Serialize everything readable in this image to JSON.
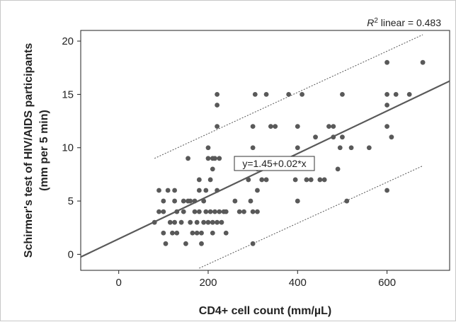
{
  "chart_data": {
    "type": "scatter",
    "xlabel": "CD4+ cell count (mm/µL)",
    "ylabel_line1": "Schirmer's test of HIV/AIDS participants",
    "ylabel_line2": "(mm per 5 min)",
    "xlim": [
      -85,
      740
    ],
    "ylim": [
      -1.5,
      21
    ],
    "xticks": [
      0,
      200,
      400,
      600
    ],
    "yticks": [
      0,
      5,
      10,
      15,
      20
    ],
    "grid": false,
    "r2_label_prefix": "R",
    "r2_label_suffix": " linear = 0.483",
    "equation_label": "y=1.45+0.02*x",
    "colors": {
      "points": "#595959",
      "fit_line": "#595959",
      "ci_lines": "#555555",
      "axes": "#222222"
    },
    "fit_line": {
      "intercept": 1.45,
      "slope": 0.02,
      "x_range": [
        -85,
        740
      ]
    },
    "ci_bands": [
      {
        "name": "upper",
        "points": [
          [
            80,
            9
          ],
          [
            680,
            20.6
          ]
        ]
      },
      {
        "name": "lower",
        "points": [
          [
            180,
            -1.3
          ],
          [
            680,
            8.3
          ]
        ]
      }
    ],
    "points": [
      [
        80,
        3
      ],
      [
        90,
        6
      ],
      [
        90,
        4
      ],
      [
        100,
        5
      ],
      [
        100,
        4
      ],
      [
        100,
        2
      ],
      [
        105,
        1
      ],
      [
        110,
        6
      ],
      [
        115,
        3
      ],
      [
        120,
        2
      ],
      [
        125,
        6
      ],
      [
        125,
        5
      ],
      [
        125,
        3
      ],
      [
        130,
        4
      ],
      [
        130,
        2
      ],
      [
        140,
        3
      ],
      [
        145,
        5
      ],
      [
        145,
        4
      ],
      [
        150,
        1
      ],
      [
        155,
        9
      ],
      [
        155,
        5
      ],
      [
        160,
        5
      ],
      [
        160,
        3
      ],
      [
        165,
        2
      ],
      [
        170,
        5
      ],
      [
        170,
        4
      ],
      [
        175,
        3
      ],
      [
        175,
        2
      ],
      [
        180,
        7
      ],
      [
        180,
        6
      ],
      [
        180,
        4
      ],
      [
        185,
        2
      ],
      [
        185,
        1
      ],
      [
        190,
        5
      ],
      [
        190,
        3
      ],
      [
        195,
        6
      ],
      [
        195,
        4
      ],
      [
        200,
        10
      ],
      [
        200,
        9
      ],
      [
        200,
        3
      ],
      [
        205,
        7
      ],
      [
        205,
        4
      ],
      [
        210,
        9
      ],
      [
        210,
        8
      ],
      [
        210,
        3
      ],
      [
        210,
        2
      ],
      [
        215,
        9
      ],
      [
        215,
        4
      ],
      [
        220,
        15
      ],
      [
        220,
        14
      ],
      [
        220,
        12
      ],
      [
        220,
        6
      ],
      [
        220,
        3
      ],
      [
        225,
        9
      ],
      [
        225,
        4
      ],
      [
        230,
        3
      ],
      [
        235,
        4
      ],
      [
        240,
        4
      ],
      [
        240,
        2
      ],
      [
        260,
        5
      ],
      [
        270,
        4
      ],
      [
        280,
        4
      ],
      [
        290,
        7
      ],
      [
        295,
        5
      ],
      [
        300,
        12
      ],
      [
        300,
        10
      ],
      [
        300,
        4
      ],
      [
        300,
        1
      ],
      [
        305,
        15
      ],
      [
        310,
        8
      ],
      [
        310,
        6
      ],
      [
        310,
        4
      ],
      [
        315,
        9
      ],
      [
        320,
        7
      ],
      [
        330,
        15
      ],
      [
        330,
        7
      ],
      [
        340,
        12
      ],
      [
        350,
        12
      ],
      [
        380,
        15
      ],
      [
        395,
        7
      ],
      [
        400,
        12
      ],
      [
        400,
        10
      ],
      [
        400,
        5
      ],
      [
        405,
        9
      ],
      [
        410,
        15
      ],
      [
        420,
        7
      ],
      [
        430,
        7
      ],
      [
        440,
        11
      ],
      [
        450,
        7
      ],
      [
        460,
        7
      ],
      [
        470,
        12
      ],
      [
        480,
        11
      ],
      [
        480,
        12
      ],
      [
        490,
        8
      ],
      [
        495,
        10
      ],
      [
        500,
        15
      ],
      [
        500,
        11
      ],
      [
        510,
        5
      ],
      [
        520,
        10
      ],
      [
        560,
        10
      ],
      [
        600,
        18
      ],
      [
        600,
        15
      ],
      [
        600,
        14
      ],
      [
        600,
        12
      ],
      [
        600,
        6
      ],
      [
        610,
        11
      ],
      [
        620,
        15
      ],
      [
        650,
        15
      ],
      [
        680,
        18
      ]
    ]
  }
}
